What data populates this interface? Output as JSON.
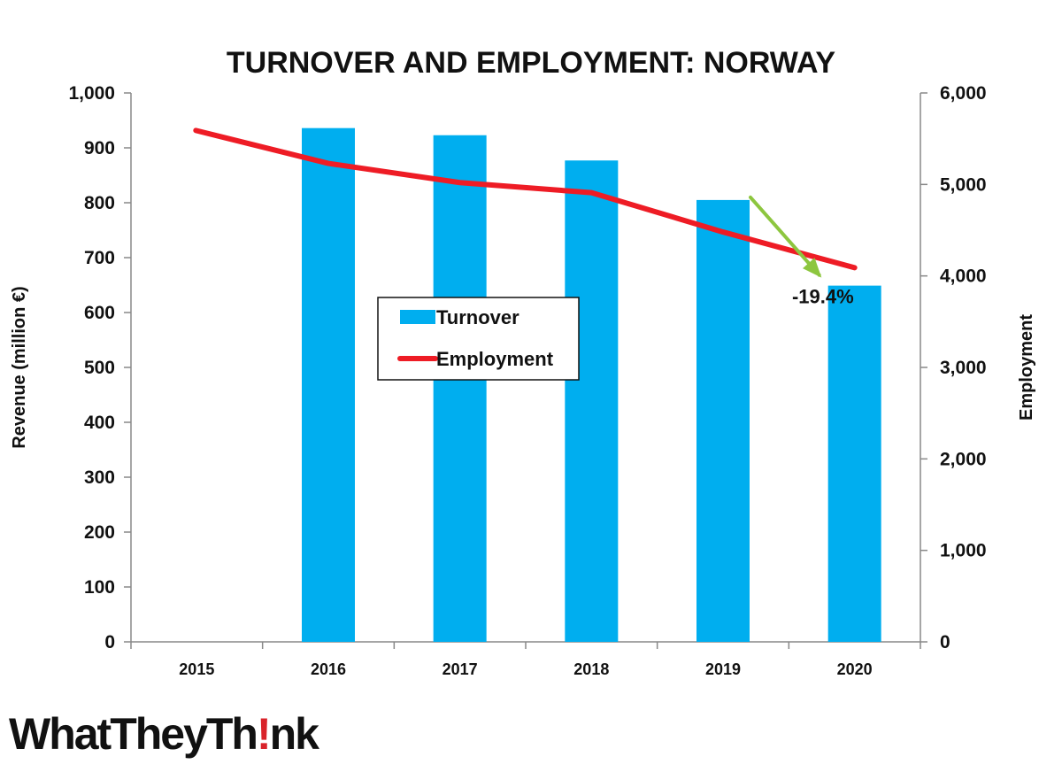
{
  "chart_data": {
    "type": "bar",
    "title": "TURNOVER AND EMPLOYMENT: NORWAY",
    "categories": [
      "2015",
      "2016",
      "2017",
      "2018",
      "2019",
      "2020"
    ],
    "series": [
      {
        "name": "Turnover",
        "type": "bar",
        "axis": "left",
        "color": "#00aeef",
        "values": [
          null,
          936,
          923,
          877,
          805,
          649
        ]
      },
      {
        "name": "Employment",
        "type": "line",
        "axis": "right",
        "color": "#ee1c25",
        "values": [
          5590,
          5230,
          5020,
          4910,
          4480,
          4090
        ]
      }
    ],
    "ylabel": "Revenue (million €)",
    "y2label": "Employment",
    "ylim": [
      0,
      1000
    ],
    "y2lim": [
      0,
      6000
    ],
    "yticks": [
      "0",
      "100",
      "200",
      "300",
      "400",
      "500",
      "600",
      "700",
      "800",
      "900",
      "1,000"
    ],
    "y2ticks": [
      "0",
      "1,000",
      "2,000",
      "3,000",
      "4,000",
      "5,000",
      "6,000"
    ],
    "grid": false,
    "legend_position": "center-left",
    "annotation": {
      "text": "-19.4%",
      "from_category": "2019",
      "to_category": "2020",
      "arrow_color": "#8dc63f"
    }
  },
  "logo": {
    "part1": "WhatTheyTh",
    "bang": "!",
    "part2": "nk"
  }
}
